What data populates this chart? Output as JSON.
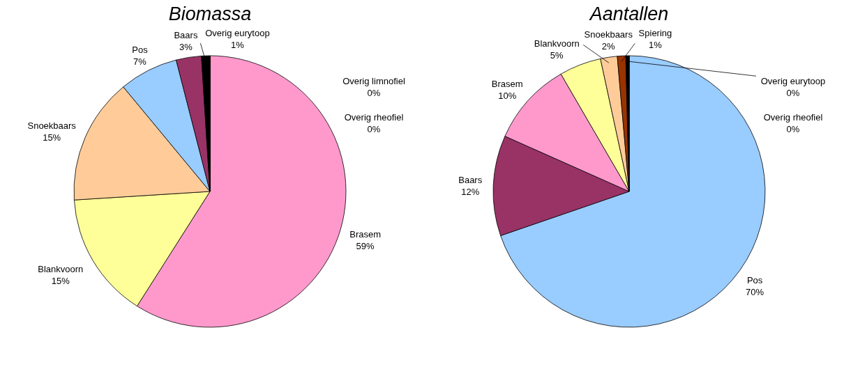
{
  "chart_data": [
    {
      "type": "pie",
      "title": "Biomassa",
      "categories": [
        "Brasem",
        "Blankvoorn",
        "Snoekbaars",
        "Pos",
        "Baars",
        "Overig eurytoop",
        "Overig limnofiel",
        "Overig rheofiel"
      ],
      "values": [
        59,
        15,
        15,
        7,
        3,
        1,
        0,
        0
      ],
      "value_labels": [
        "59%",
        "15%",
        "15%",
        "7%",
        "3%",
        "1%",
        "0%",
        "0%"
      ],
      "colors": [
        "#ff99cc",
        "#ffff99",
        "#ffcc99",
        "#99ccff",
        "#993366",
        "#000000",
        "#339966",
        "#666699"
      ]
    },
    {
      "type": "pie",
      "title": "Aantallen",
      "categories": [
        "Pos",
        "Baars",
        "Brasem",
        "Blankvoorn",
        "Snoekbaars",
        "Spiering",
        "Overig eurytoop",
        "Overig rheofiel"
      ],
      "values": [
        70,
        12,
        10,
        5,
        2,
        1,
        0.4,
        0
      ],
      "value_labels": [
        "70%",
        "12%",
        "10%",
        "5%",
        "2%",
        "1%",
        "0%",
        "0%"
      ],
      "colors": [
        "#99ccff",
        "#993366",
        "#ff99cc",
        "#ffff99",
        "#ffcc99",
        "#993300",
        "#000000",
        "#666699"
      ]
    }
  ]
}
